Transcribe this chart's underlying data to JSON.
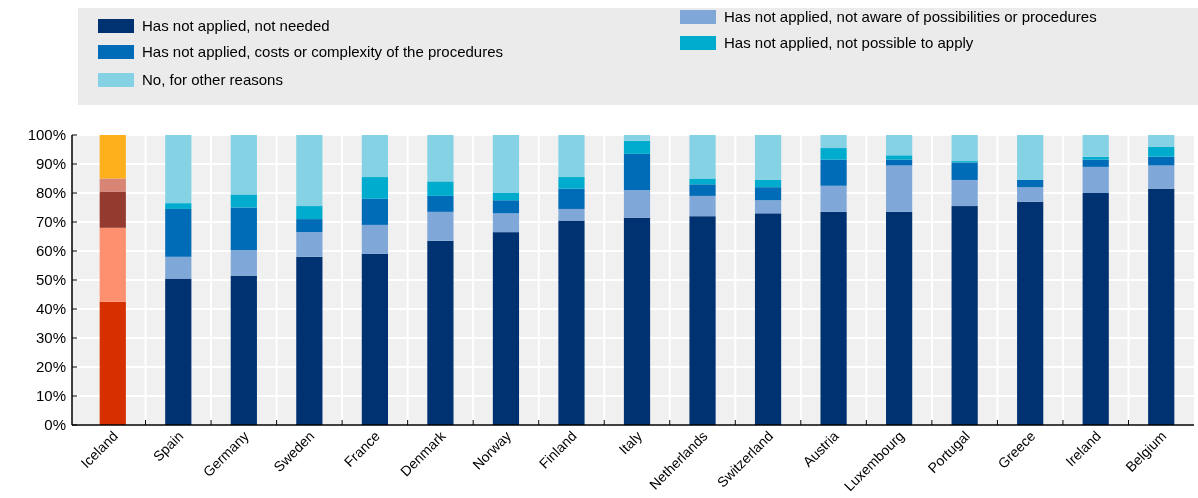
{
  "chart_data": {
    "type": "bar",
    "stacked": true,
    "legend": "top",
    "grid": true,
    "categories": [
      "Iceland",
      "Spain",
      "Germany",
      "Sweden",
      "France",
      "Denmark",
      "Norway",
      "Finland",
      "Italy",
      "Netherlands",
      "Switzerland",
      "Austria",
      "Luxembourg",
      "Portugal",
      "Greece",
      "Ireland",
      "Belgium"
    ],
    "ylim": [
      0,
      100
    ],
    "yticks": [
      {
        "value": 0,
        "label": "0%"
      },
      {
        "value": 10,
        "label": "10%"
      },
      {
        "value": 20,
        "label": "20%"
      },
      {
        "value": 30,
        "label": "30%"
      },
      {
        "value": 40,
        "label": "40%"
      },
      {
        "value": 50,
        "label": "50%"
      },
      {
        "value": 60,
        "label": "60%"
      },
      {
        "value": 70,
        "label": "70%"
      },
      {
        "value": 80,
        "label": "80%"
      },
      {
        "value": 90,
        "label": "90%"
      },
      {
        "value": 100,
        "label": "100%"
      }
    ],
    "series": [
      {
        "name": "Has not applied, not needed",
        "color": "#003272",
        "colors": [
          "#d73000",
          "#003272",
          "#003272",
          "#003272",
          "#003272",
          "#003272",
          "#003272",
          "#003272",
          "#003272",
          "#003272",
          "#003272",
          "#003272",
          "#003272",
          "#003272",
          "#003272",
          "#003272",
          "#003272"
        ],
        "values": [
          42.5,
          50.5,
          51.5,
          58,
          59,
          63.5,
          66.5,
          70.5,
          71.5,
          72,
          73,
          73.5,
          73.5,
          75.5,
          77,
          80,
          81.5
        ]
      },
      {
        "name": "Has not applied, not aware of possibilities or procedures",
        "color": "#7fa8d9",
        "colors": [
          "#ff906f",
          "#7fa8d9",
          "#7fa8d9",
          "#7fa8d9",
          "#7fa8d9",
          "#7fa8d9",
          "#7fa8d9",
          "#7fa8d9",
          "#7fa8d9",
          "#7fa8d9",
          "#7fa8d9",
          "#7fa8d9",
          "#7fa8d9",
          "#7fa8d9",
          "#7fa8d9",
          "#7fa8d9",
          "#7fa8d9"
        ],
        "values": [
          25.5,
          7.5,
          8.8,
          8.5,
          10,
          10,
          6.5,
          4,
          9.5,
          7,
          4.5,
          9,
          16,
          9,
          5,
          9,
          8
        ]
      },
      {
        "name": "Has not applied, costs or complexity of the procedures",
        "color": "#006bb6",
        "colors": [
          "#953a2e",
          "#006bb6",
          "#006bb6",
          "#006bb6",
          "#006bb6",
          "#006bb6",
          "#006bb6",
          "#006bb6",
          "#006bb6",
          "#006bb6",
          "#006bb6",
          "#006bb6",
          "#006bb6",
          "#006bb6",
          "#006bb6",
          "#006bb6",
          "#006bb6"
        ],
        "values": [
          12.5,
          16.5,
          14.7,
          4.5,
          9,
          5.5,
          4.5,
          7,
          12.5,
          4,
          4.5,
          9,
          2,
          6,
          2.5,
          2.5,
          3
        ]
      },
      {
        "name": "Has not applied, not possible to apply",
        "color": "#00acce",
        "colors": [
          "#d98575",
          "#00acce",
          "#00acce",
          "#00acce",
          "#00acce",
          "#00acce",
          "#00acce",
          "#00acce",
          "#00acce",
          "#00acce",
          "#00acce",
          "#00acce",
          "#00acce",
          "#00acce",
          "#00acce",
          "#00acce",
          "#00acce"
        ],
        "values": [
          4.5,
          2,
          4.5,
          4.5,
          7.5,
          5,
          2.5,
          4,
          4.5,
          2,
          2.5,
          4,
          1.5,
          0.5,
          0,
          1,
          3.5
        ]
      },
      {
        "name": "No, for other reasons",
        "color": "#86d2e5",
        "colors": [
          "#fdb01b",
          "#86d2e5",
          "#86d2e5",
          "#86d2e5",
          "#86d2e5",
          "#86d2e5",
          "#86d2e5",
          "#86d2e5",
          "#86d2e5",
          "#86d2e5",
          "#86d2e5",
          "#86d2e5",
          "#86d2e5",
          "#86d2e5",
          "#86d2e5",
          "#86d2e5",
          "#86d2e5"
        ],
        "values": [
          15,
          23.5,
          20.5,
          24.5,
          14.5,
          16,
          20,
          14.5,
          2,
          15,
          15.5,
          4.5,
          7,
          9,
          15.5,
          7.5,
          4
        ]
      }
    ]
  }
}
